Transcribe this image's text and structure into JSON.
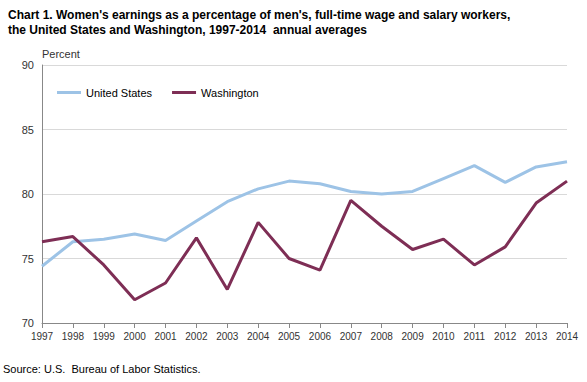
{
  "chart_data": {
    "type": "line",
    "title": "Chart 1. Women's earnings as a percentage of men's, full-time wage and salary workers,\nthe United States and Washington, 1997-2014  annual averages",
    "y_label": "Percent",
    "source": "Source: U.S.  Bureau of Labor Statistics.",
    "categories": [
      "1997",
      "1998",
      "1999",
      "2000",
      "2001",
      "2002",
      "2003",
      "2004",
      "2005",
      "2006",
      "2007",
      "2008",
      "2009",
      "2010",
      "2011",
      "2012",
      "2013",
      "2014"
    ],
    "series": [
      {
        "name": "United States",
        "color": "#9dc3e6",
        "values": [
          74.4,
          76.3,
          76.5,
          76.9,
          76.4,
          77.9,
          79.4,
          80.4,
          81.0,
          80.8,
          80.2,
          80.0,
          80.2,
          81.2,
          82.2,
          80.9,
          82.1,
          82.5
        ]
      },
      {
        "name": "Washington",
        "color": "#7e2e55",
        "values": [
          76.3,
          76.7,
          74.5,
          71.8,
          73.1,
          76.6,
          72.6,
          77.8,
          75.0,
          74.1,
          79.5,
          77.5,
          75.7,
          76.5,
          74.5,
          75.9,
          79.3,
          81.0
        ]
      }
    ],
    "ylim": [
      70,
      90
    ],
    "yticks": [
      70,
      75,
      80,
      85,
      90
    ],
    "grid": true,
    "legend": "upper left"
  }
}
